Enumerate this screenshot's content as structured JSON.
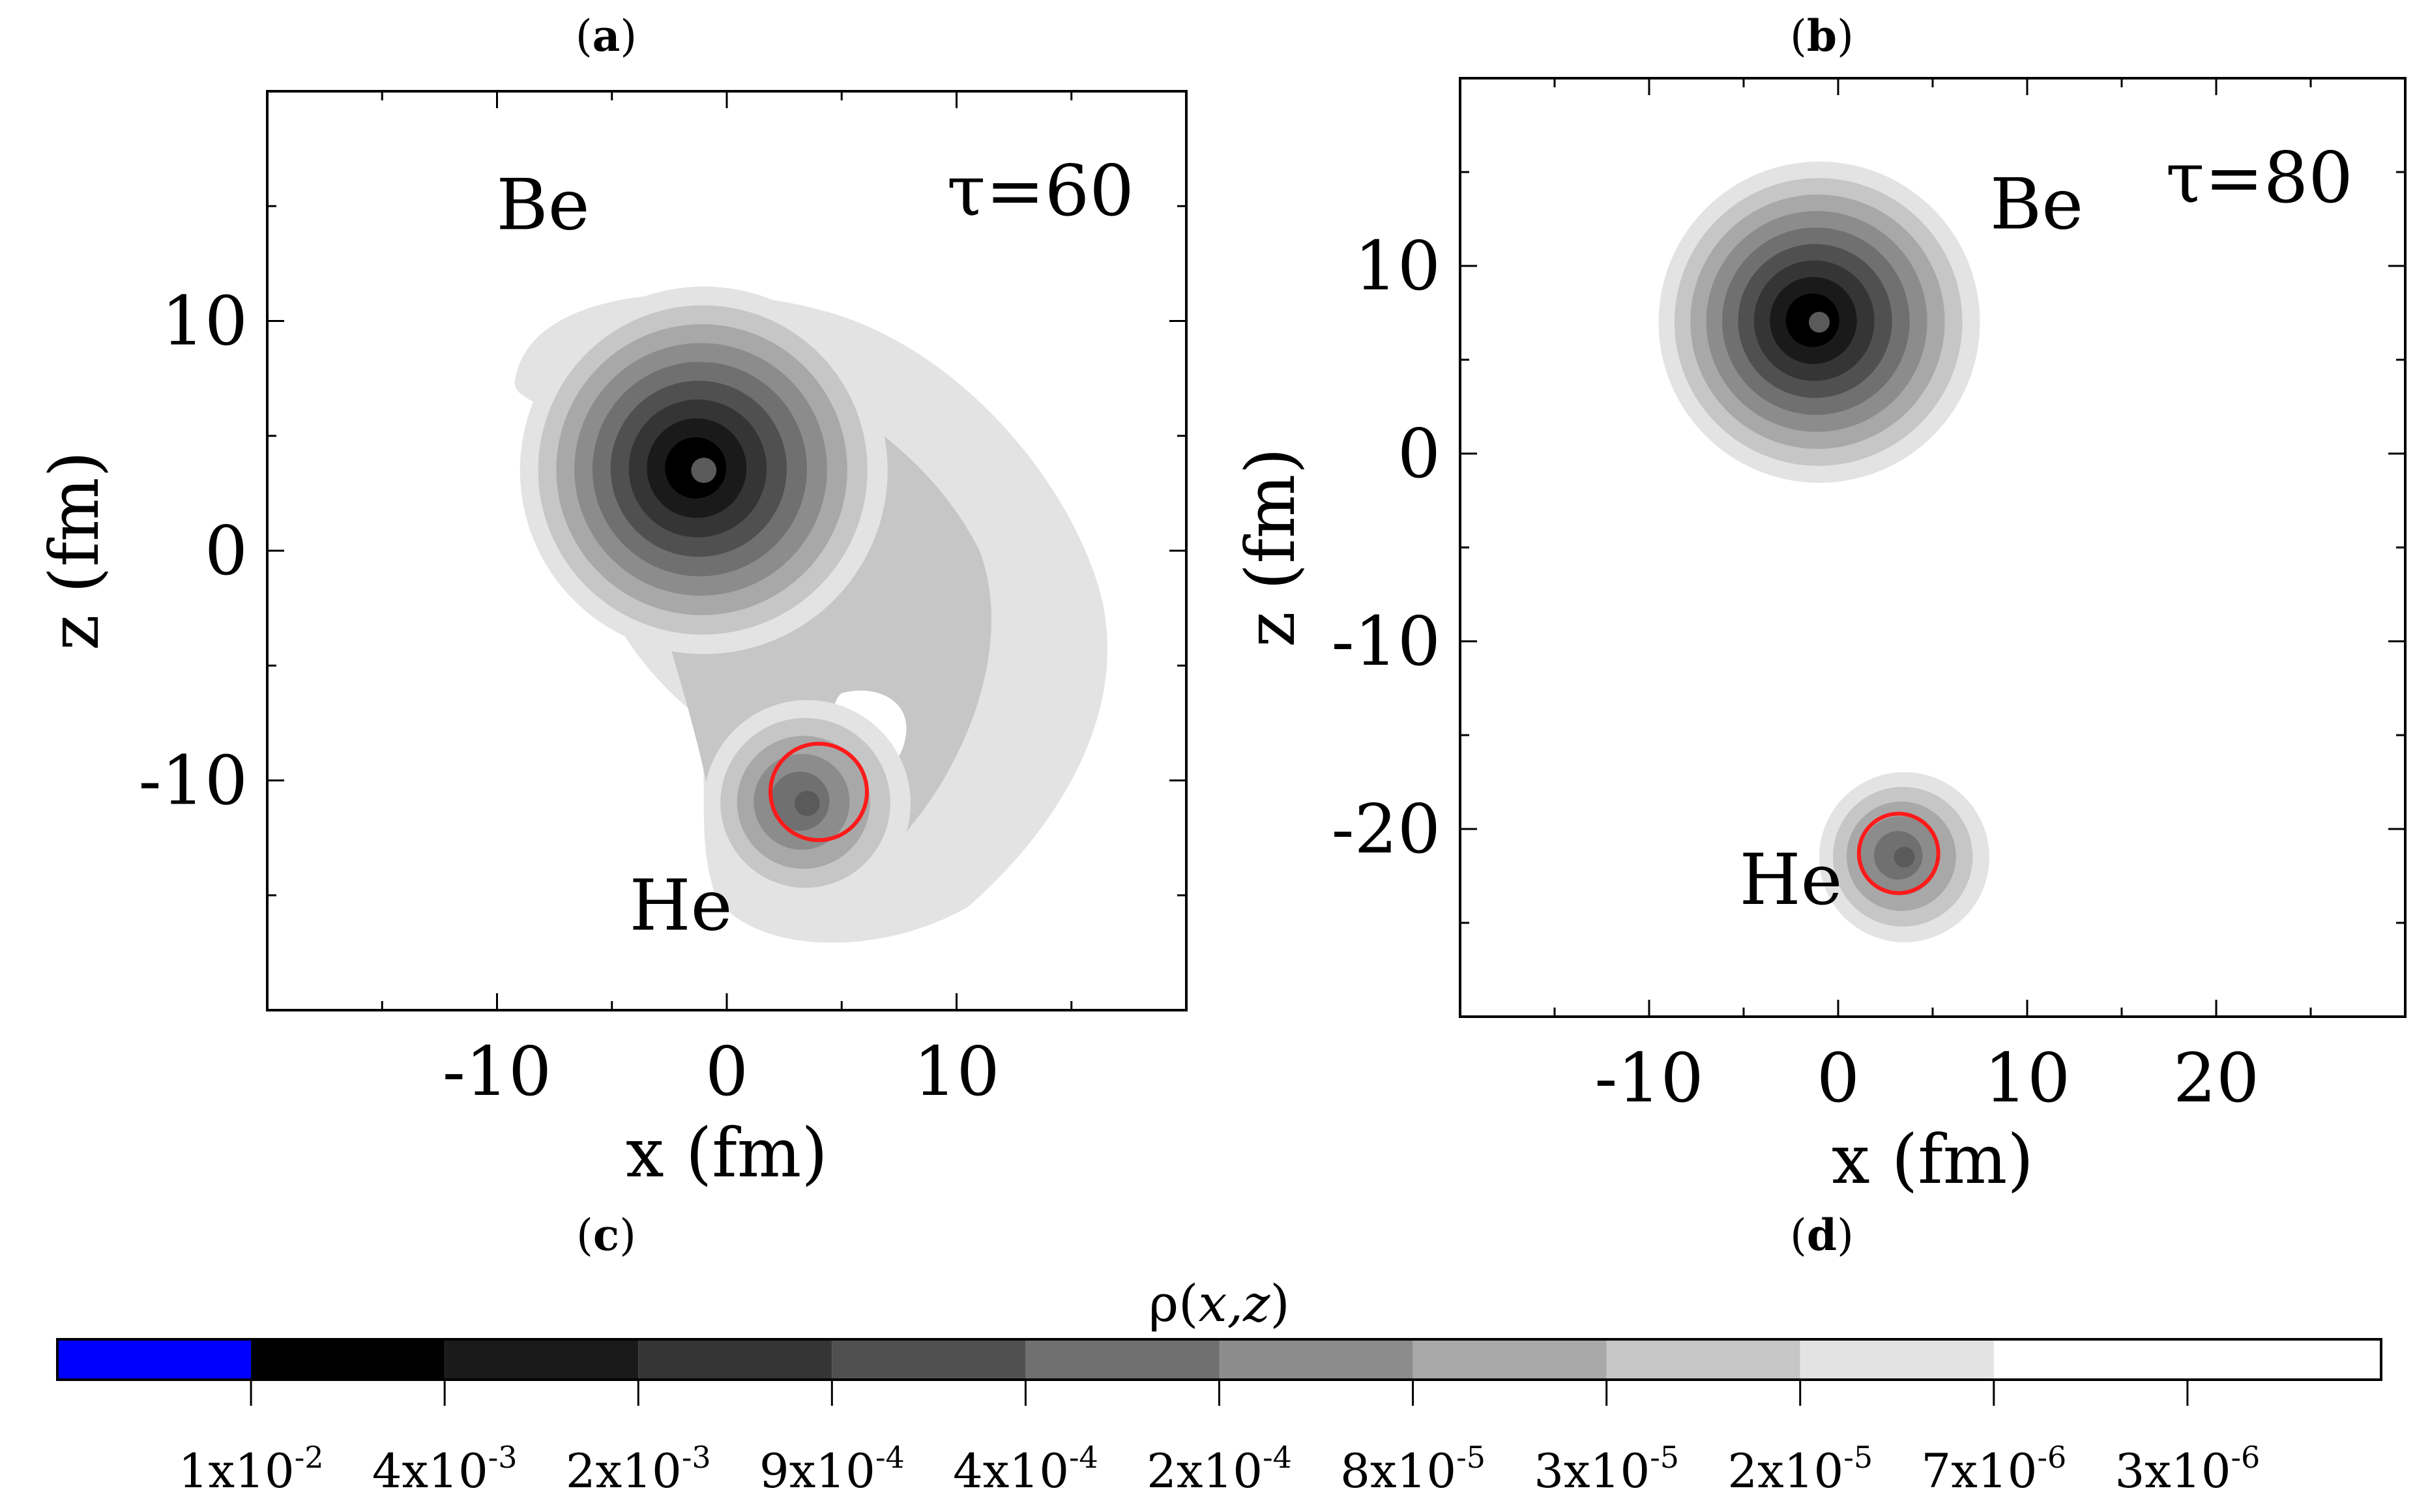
{
  "chart_data": [
    {
      "type": "heatmap",
      "panel": "(a)",
      "panel_letter": "a",
      "title": "τ=60",
      "xlabel": "x (fm)",
      "ylabel": "z (fm)",
      "xlim": [
        -20,
        20
      ],
      "ylim": [
        -20,
        20
      ],
      "xticks": [
        "-10",
        "0",
        "10"
      ],
      "xtick_values": [
        -10,
        0,
        10
      ],
      "yticks": [
        "10",
        "0",
        "-10"
      ],
      "ytick_values": [
        10,
        0,
        -10
      ],
      "annotations": [
        {
          "text": "Be",
          "x": -8,
          "z": 14
        },
        {
          "text": "He",
          "x": -2,
          "z": -16.5
        }
      ],
      "nuclei": [
        {
          "name": "Be",
          "center": [
            -1,
            3.5
          ],
          "max_level": "1x10-2",
          "outer_radius": 8
        },
        {
          "name": "He",
          "center": [
            3.5,
            -11
          ],
          "max_level": "4x10-4",
          "outer_radius": 4.5
        }
      ],
      "neck": {
        "outer_level": "7x10-6",
        "extent_x": [
          -9,
          16.5
        ],
        "extent_z": [
          -17,
          11
        ]
      },
      "red_circle": {
        "center": [
          4,
          -10.5
        ],
        "radius": 2.1
      }
    },
    {
      "type": "heatmap",
      "panel": "(b)",
      "panel_letter": "b",
      "title": "τ=80",
      "xlabel": "x (fm)",
      "ylabel": "z (fm)",
      "xlim": [
        -20,
        30
      ],
      "ylim": [
        -30,
        20
      ],
      "xticks": [
        "-10",
        "0",
        "10",
        "20"
      ],
      "xtick_values": [
        -10,
        0,
        10,
        20
      ],
      "yticks": [
        "10",
        "0",
        "-10",
        "-20"
      ],
      "ytick_values": [
        10,
        0,
        -10,
        -20
      ],
      "annotations": [
        {
          "text": "Be",
          "x": 10.5,
          "z": 12
        },
        {
          "text": "He",
          "x": -2.5,
          "z": -24
        }
      ],
      "nuclei": [
        {
          "name": "Be",
          "center": [
            -1,
            7
          ],
          "max_level": "1x10-2",
          "outer_radius": 8.5
        },
        {
          "name": "He",
          "center": [
            3.5,
            -21.5
          ],
          "max_level": "4x10-4",
          "outer_radius": 4.5
        }
      ],
      "red_circle": {
        "center": [
          3.2,
          -21.3
        ],
        "radius": 2.1
      }
    }
  ],
  "sublabels": [
    "c",
    "d"
  ],
  "colorbar": {
    "title_prefix": "ρ(",
    "title_var": "x,z",
    "title_suffix": ")",
    "colors": [
      "#0000ff",
      "#000000",
      "#1a1a1a",
      "#353535",
      "#505050",
      "#707070",
      "#8c8c8c",
      "#a8a8a8",
      "#c6c6c6",
      "#e3e3e3",
      "#ffffff"
    ],
    "tick_labels": [
      {
        "mantissa": "1x10",
        "exponent": "-2"
      },
      {
        "mantissa": "4x10",
        "exponent": "-3"
      },
      {
        "mantissa": "2x10",
        "exponent": "-3"
      },
      {
        "mantissa": "9x10",
        "exponent": "-4"
      },
      {
        "mantissa": "4x10",
        "exponent": "-4"
      },
      {
        "mantissa": "2x10",
        "exponent": "-4"
      },
      {
        "mantissa": "8x10",
        "exponent": "-5"
      },
      {
        "mantissa": "3x10",
        "exponent": "-5"
      },
      {
        "mantissa": "2x10",
        "exponent": "-5"
      },
      {
        "mantissa": "7x10",
        "exponent": "-6"
      },
      {
        "mantissa": "3x10",
        "exponent": "-6"
      }
    ]
  }
}
